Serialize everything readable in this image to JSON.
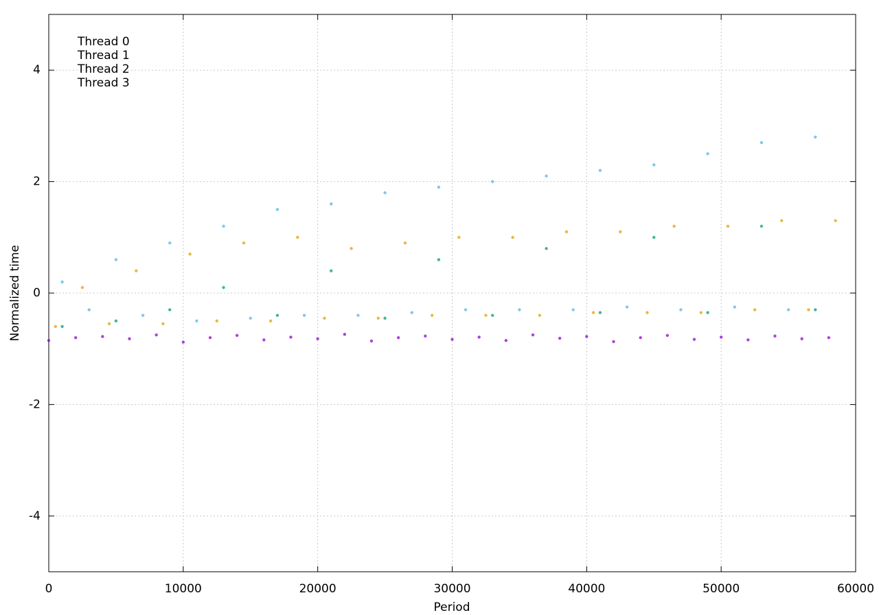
{
  "chart_data": {
    "type": "scatter",
    "x_label": "Period",
    "y_label": "Normalized time",
    "xlim": [
      0,
      60000
    ],
    "ylim": [
      -5,
      5
    ],
    "xticks": [
      0,
      10000,
      20000,
      30000,
      40000,
      50000,
      60000
    ],
    "yticks": [
      -4,
      -2,
      0,
      2,
      4
    ],
    "grid": true,
    "legend": "upper left",
    "series": [
      {
        "name": "Thread 0",
        "color": "#9400d3",
        "x": [
          0,
          2000,
          4000,
          6000,
          8000,
          10000,
          12000,
          14000,
          16000,
          18000,
          20000,
          22000,
          24000,
          26000,
          28000,
          30000,
          32000,
          34000,
          36000,
          38000,
          40000,
          42000,
          44000,
          46000,
          48000,
          50000,
          52000,
          54000,
          56000,
          58000
        ],
        "values": [
          -0.85,
          -0.8,
          -0.78,
          -0.82,
          -0.75,
          -0.88,
          -0.8,
          -0.76,
          -0.84,
          -0.79,
          -0.82,
          -0.74,
          -0.86,
          -0.8,
          -0.77,
          -0.83,
          -0.79,
          -0.85,
          -0.75,
          -0.81,
          -0.78,
          -0.87,
          -0.8,
          -0.76,
          -0.83,
          -0.79,
          -0.84,
          -0.77,
          -0.82,
          -0.8
        ]
      },
      {
        "name": "Thread 1",
        "color": "#009e73",
        "x": [
          1000,
          5000,
          9000,
          13000,
          17000,
          21000,
          25000,
          29000,
          33000,
          37000,
          41000,
          45000,
          49000,
          53000,
          57000
        ],
        "values": [
          -0.6,
          -0.5,
          -0.3,
          0.1,
          -0.4,
          0.4,
          -0.45,
          0.6,
          -0.4,
          0.8,
          -0.35,
          1.0,
          -0.35,
          1.2,
          -0.3
        ]
      },
      {
        "name": "Thread 2",
        "color": "#56b4e9",
        "x": [
          1000,
          3000,
          5000,
          7000,
          9000,
          11000,
          13000,
          15000,
          17000,
          19000,
          21000,
          23000,
          25000,
          27000,
          29000,
          31000,
          33000,
          35000,
          37000,
          39000,
          41000,
          43000,
          45000,
          47000,
          49000,
          51000,
          53000,
          55000,
          57000
        ],
        "values": [
          0.2,
          -0.3,
          0.6,
          -0.4,
          0.9,
          -0.5,
          1.2,
          -0.45,
          1.5,
          -0.4,
          1.6,
          -0.4,
          1.8,
          -0.35,
          1.9,
          -0.3,
          2.0,
          -0.3,
          2.1,
          -0.3,
          2.2,
          -0.25,
          2.3,
          -0.3,
          2.5,
          -0.25,
          2.7,
          -0.3,
          2.8
        ]
      },
      {
        "name": "Thread 3",
        "color": "#e69f00",
        "x": [
          500,
          2500,
          4500,
          6500,
          8500,
          10500,
          12500,
          14500,
          16500,
          18500,
          20500,
          22500,
          24500,
          26500,
          28500,
          30500,
          32500,
          34500,
          36500,
          38500,
          40500,
          42500,
          44500,
          46500,
          48500,
          50500,
          52500,
          54500,
          56500,
          58500
        ],
        "values": [
          -0.6,
          0.1,
          -0.55,
          0.4,
          -0.55,
          0.7,
          -0.5,
          0.9,
          -0.5,
          1.0,
          -0.45,
          0.8,
          -0.45,
          0.9,
          -0.4,
          1.0,
          -0.4,
          1.0,
          -0.4,
          1.1,
          -0.35,
          1.1,
          -0.35,
          1.2,
          -0.35,
          1.2,
          -0.3,
          1.3,
          -0.3,
          1.3
        ]
      }
    ]
  }
}
